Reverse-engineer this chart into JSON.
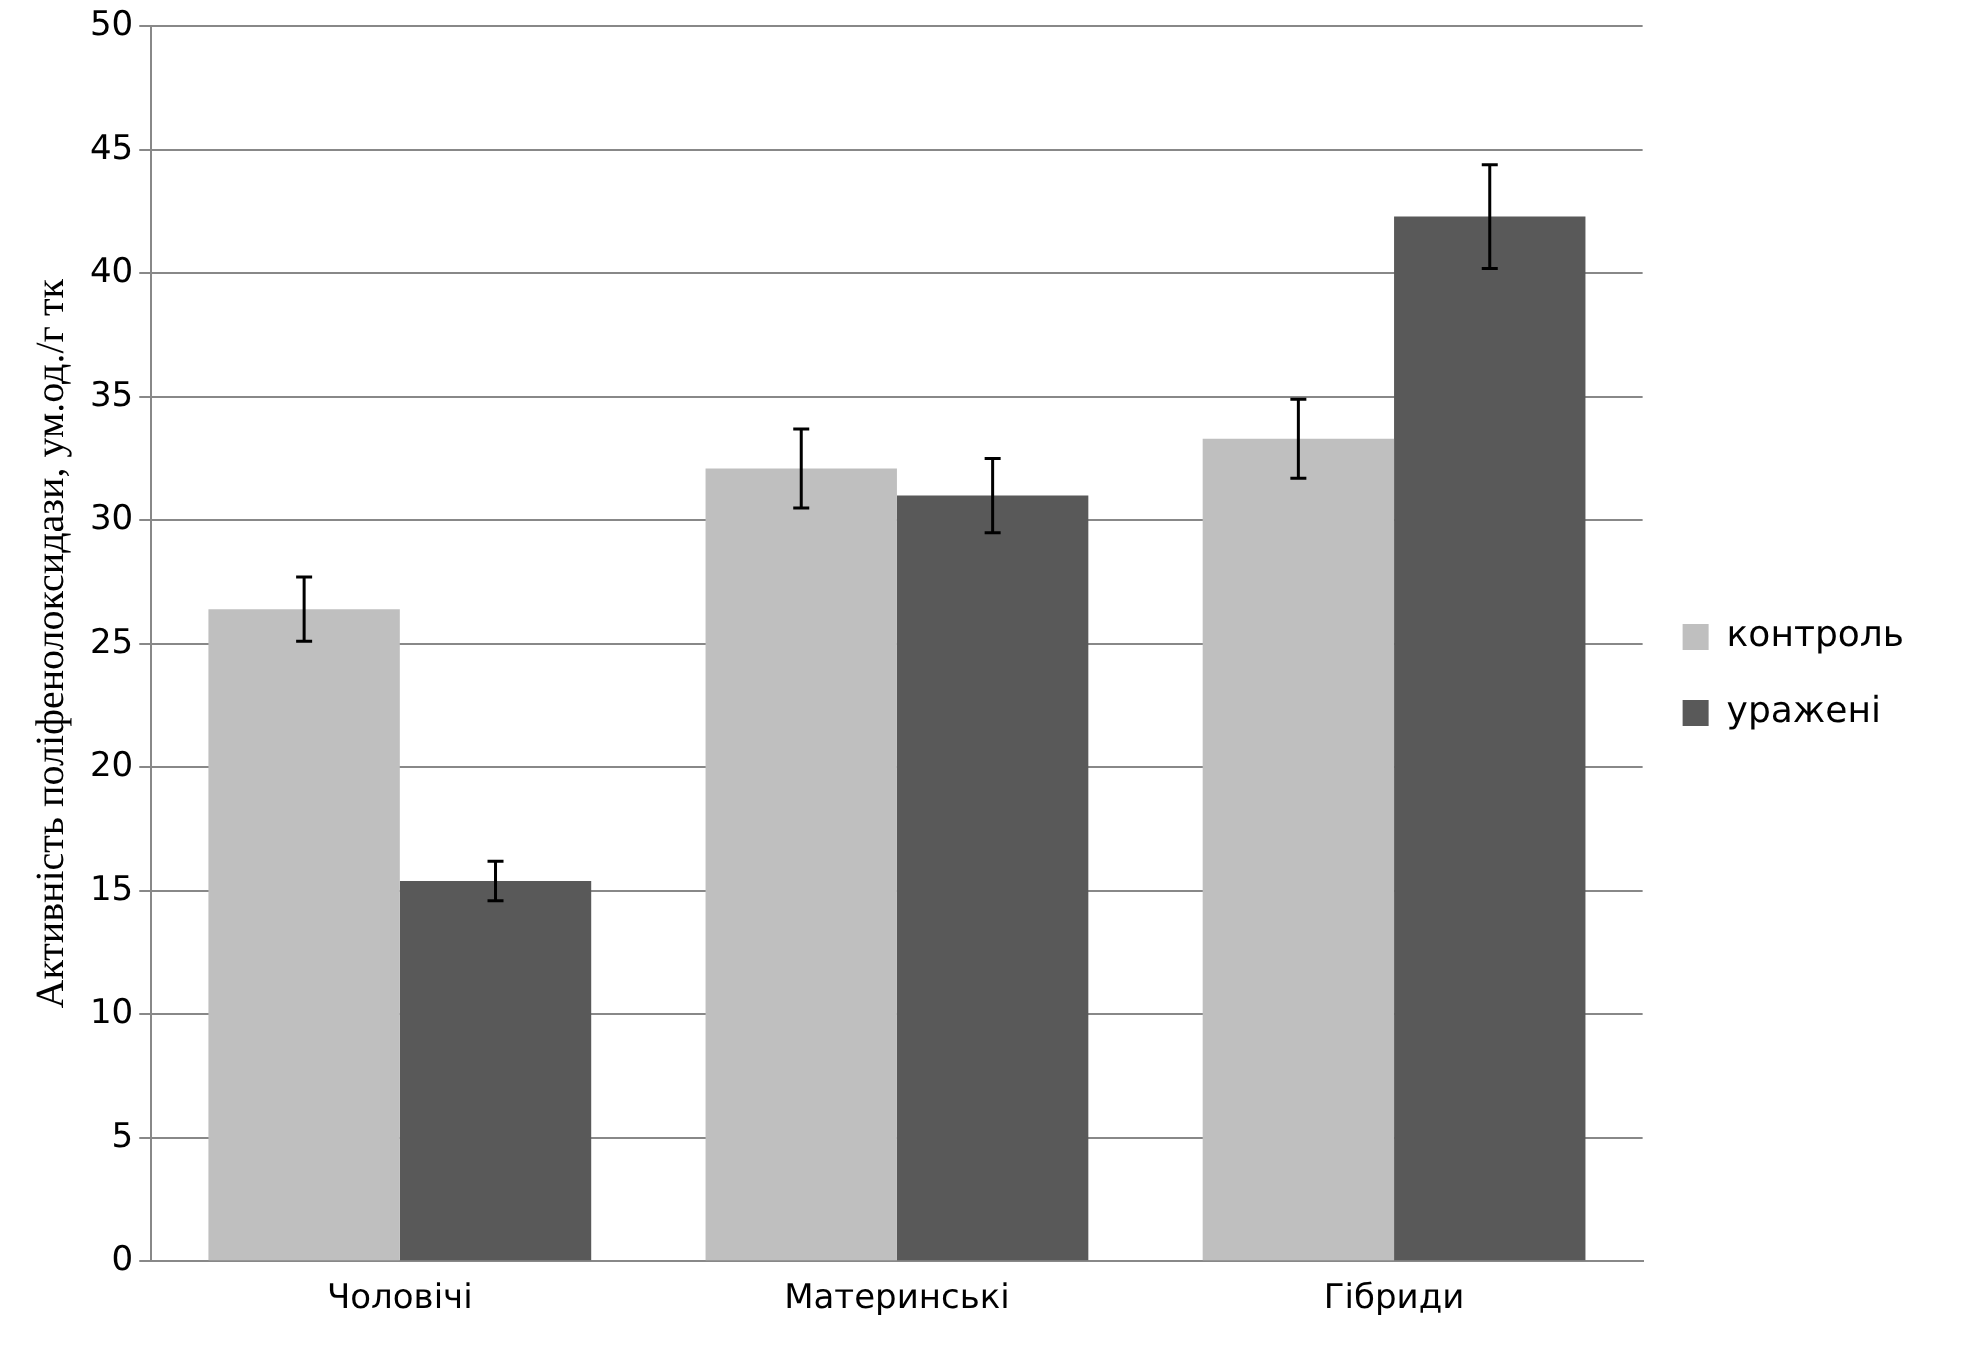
{
  "chart_data": {
    "type": "bar",
    "ylabel": "Активність поліфенолоксидази, ум.од./г тк",
    "categories": [
      "Чоловічі",
      "Материнські",
      "Гібриди"
    ],
    "series": [
      {
        "name": "контроль",
        "color": "#bfbfbf",
        "values": [
          26.4,
          32.1,
          33.3
        ],
        "errors": [
          1.3,
          1.6,
          1.6
        ]
      },
      {
        "name": "уражені",
        "color": "#595959",
        "values": [
          15.4,
          31.0,
          42.3
        ],
        "errors": [
          0.8,
          1.5,
          2.1
        ]
      }
    ],
    "ylim": [
      0,
      50
    ],
    "yticks": [
      0,
      5,
      10,
      15,
      20,
      25,
      30,
      35,
      40,
      45,
      50
    ],
    "grid": "y",
    "legend": "right"
  }
}
